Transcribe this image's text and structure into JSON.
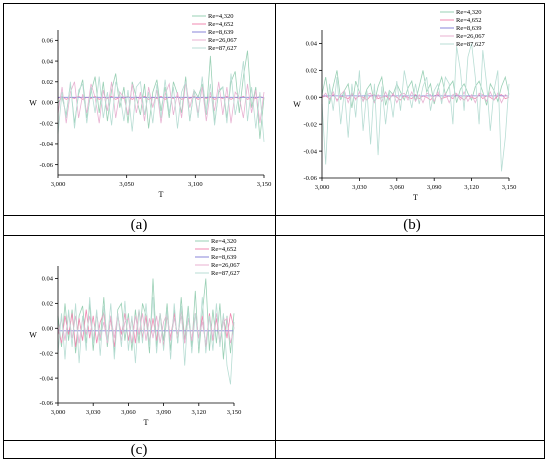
{
  "captions": [
    "(a)",
    "(b)",
    "(c)"
  ],
  "legend_colors": [
    "#9ad0b5",
    "#f08ab2",
    "#8a86d8",
    "#e8b2d2",
    "#b8ddd4"
  ],
  "chart_data": [
    {
      "id": "a",
      "type": "line",
      "xlabel": "T",
      "ylabel": "W",
      "xlim": [
        3000,
        3150
      ],
      "ylim": [
        -0.07,
        0.07
      ],
      "xticks": [
        "3,000",
        "3,050",
        "3,100",
        "3,150"
      ],
      "xtick_values": [
        3000,
        3050,
        3100,
        3150
      ],
      "yticks": [
        "-0.06",
        "-0.04",
        "-0.02",
        "0.00",
        "0.02",
        "0.04",
        "0.06"
      ],
      "ytick_values": [
        -0.06,
        -0.04,
        -0.02,
        0.0,
        0.02,
        0.04,
        0.06
      ],
      "series": [
        {
          "name": "Re=4,320",
          "values": [
            0.0,
            0.005,
            -0.012,
            0.018,
            -0.02,
            0.008,
            0.022,
            -0.015,
            0.01,
            0.025,
            -0.01,
            0.02,
            -0.018,
            0.012,
            0.028,
            -0.005,
            0.015,
            -0.02,
            0.02,
            0.005,
            -0.012,
            0.018,
            -0.025,
            0.01,
            0.022,
            -0.008,
            0.015,
            -0.015,
            0.02,
            0.008,
            -0.01,
            0.025,
            -0.018,
            0.012,
            0.005,
            0.018,
            -0.012,
            0.045,
            -0.02,
            0.01,
            0.015,
            -0.015,
            0.02,
            0.03,
            -0.01,
            0.025,
            0.05,
            -0.005,
            0.015,
            -0.035,
            0.005
          ]
        },
        {
          "name": "Re=4,652",
          "values": [
            0.004,
            0.006,
            0.003,
            0.005,
            0.004,
            0.006,
            0.003,
            0.005,
            0.004,
            0.006,
            0.003,
            0.005,
            0.004,
            0.006,
            0.003,
            0.005,
            0.004,
            0.006,
            0.003,
            0.005,
            0.004,
            0.006,
            0.003,
            0.005,
            0.004,
            0.006,
            0.003,
            0.005,
            0.004,
            0.006,
            0.003,
            0.005,
            0.004,
            0.006,
            0.003,
            0.005,
            0.004,
            0.006,
            0.003,
            0.005,
            0.004,
            0.006,
            0.003,
            0.005,
            0.004,
            0.006,
            0.003,
            0.005,
            0.004,
            0.006,
            0.004
          ]
        },
        {
          "name": "Re=8,639",
          "values": [
            0.005,
            0.005,
            0.005,
            0.005,
            0.005,
            0.005,
            0.005,
            0.005,
            0.005,
            0.005,
            0.005,
            0.005,
            0.005,
            0.005,
            0.005,
            0.005,
            0.005,
            0.005,
            0.005,
            0.005,
            0.005,
            0.005,
            0.005,
            0.005,
            0.005,
            0.005,
            0.005,
            0.005,
            0.005,
            0.005,
            0.005,
            0.005,
            0.005,
            0.005,
            0.005,
            0.005,
            0.005,
            0.005,
            0.005,
            0.005,
            0.005,
            0.005,
            0.005,
            0.005,
            0.005,
            0.005,
            0.005,
            0.005,
            0.005,
            0.005,
            0.005
          ]
        },
        {
          "name": "Re=26,067",
          "values": [
            -0.01,
            0.015,
            -0.02,
            0.01,
            0.02,
            -0.015,
            0.008,
            -0.01,
            0.018,
            0.005,
            -0.02,
            0.012,
            -0.008,
            0.02,
            -0.015,
            0.01,
            0.005,
            -0.012,
            0.018,
            -0.01,
            0.01,
            -0.018,
            0.015,
            -0.005,
            0.012,
            -0.02,
            0.008,
            0.018,
            -0.012,
            0.01,
            -0.015,
            0.02,
            -0.005,
            0.012,
            -0.01,
            0.015,
            -0.018,
            0.01,
            -0.008,
            0.02,
            -0.012,
            0.015,
            -0.02,
            0.01,
            0.005,
            -0.015,
            0.018,
            -0.01,
            0.012,
            -0.02,
            0.01
          ]
        },
        {
          "name": "Re=87,627",
          "values": [
            -0.03,
            0.01,
            -0.015,
            0.02,
            -0.025,
            0.012,
            0.018,
            -0.02,
            0.015,
            -0.01,
            0.025,
            -0.015,
            0.01,
            -0.022,
            0.02,
            0.008,
            -0.018,
            0.012,
            -0.028,
            0.015,
            0.02,
            -0.012,
            0.01,
            -0.02,
            0.018,
            -0.015,
            0.022,
            -0.01,
            0.015,
            -0.025,
            0.01,
            0.02,
            -0.018,
            0.012,
            -0.015,
            0.025,
            -0.01,
            0.018,
            -0.022,
            0.012,
            0.015,
            -0.02,
            0.028,
            -0.012,
            0.01,
            0.04,
            -0.018,
            0.015,
            -0.025,
            0.01,
            -0.038
          ]
        }
      ]
    },
    {
      "id": "b",
      "type": "line",
      "xlabel": "T",
      "ylabel": "W",
      "xlim": [
        3000,
        3150
      ],
      "ylim": [
        -0.06,
        0.05
      ],
      "xticks": [
        "3,000",
        "3,030",
        "3,060",
        "3,090",
        "3,120",
        "3,150"
      ],
      "xtick_values": [
        3000,
        3030,
        3060,
        3090,
        3120,
        3150
      ],
      "yticks": [
        "-0.06",
        "-0.04",
        "-0.02",
        "0.00",
        "0.02",
        "0.04"
      ],
      "ytick_values": [
        -0.06,
        -0.04,
        -0.02,
        0.0,
        0.02,
        0.04
      ],
      "series": [
        {
          "name": "Re=4,320",
          "values": [
            0.002,
            0.015,
            -0.005,
            0.008,
            0.02,
            -0.002,
            0.005,
            0.01,
            -0.008,
            0.012,
            0.004,
            -0.003,
            0.006,
            0.01,
            -0.004,
            0.008,
            0.015,
            -0.006,
            0.005,
            0.002,
            0.01,
            0.004,
            -0.002,
            0.007,
            0.012,
            -0.003,
            0.008,
            0.02,
            0.004,
            0.01,
            -0.005,
            0.006,
            0.015,
            0.002,
            0.008,
            0.012,
            -0.004,
            0.006,
            0.01,
            0.003,
            -0.002,
            0.008,
            0.012,
            0.004,
            -0.006,
            0.01,
            0.005,
            -0.003,
            0.008,
            0.015,
            0.002
          ]
        },
        {
          "name": "Re=4,652",
          "values": [
            0.0,
            0.001,
            -0.001,
            0.002,
            -0.002,
            0.001,
            0.0,
            -0.001,
            0.002,
            -0.001,
            0.001,
            0.0,
            -0.002,
            0.001,
            0.002,
            -0.001,
            0.0,
            0.001,
            -0.001,
            0.002,
            0.0,
            -0.002,
            0.001,
            0.0,
            -0.001,
            0.002,
            -0.001,
            0.001,
            0.0,
            -0.002,
            0.001,
            0.002,
            -0.001,
            0.0,
            0.001,
            -0.001,
            0.002,
            0.0,
            -0.002,
            0.001,
            0.0,
            -0.001,
            0.002,
            -0.001,
            0.001,
            0.0,
            -0.002,
            0.001,
            0.002,
            -0.001,
            0.0
          ]
        },
        {
          "name": "Re=8,639",
          "values": [
            0.001,
            0.001,
            0.001,
            0.001,
            0.001,
            0.001,
            0.001,
            0.001,
            0.001,
            0.001,
            0.001,
            0.001,
            0.001,
            0.001,
            0.001,
            0.001,
            0.001,
            0.001,
            0.001,
            0.001,
            0.001,
            0.001,
            0.001,
            0.001,
            0.001,
            0.001,
            0.001,
            0.001,
            0.001,
            0.001,
            0.001,
            0.001,
            0.001,
            0.001,
            0.001,
            0.001,
            0.001,
            0.001,
            0.001,
            0.001,
            0.001,
            0.001,
            0.001,
            0.001,
            0.001,
            0.001,
            0.001,
            0.001,
            0.001,
            0.001,
            0.001
          ]
        },
        {
          "name": "Re=26,067",
          "values": [
            0.0,
            0.003,
            -0.002,
            0.004,
            -0.003,
            0.002,
            0.005,
            -0.004,
            0.003,
            -0.002,
            0.004,
            -0.003,
            0.002,
            0.003,
            -0.004,
            0.002,
            -0.003,
            0.004,
            -0.002,
            0.003,
            -0.004,
            0.002,
            0.003,
            -0.002,
            0.004,
            -0.003,
            0.002,
            -0.004,
            0.003,
            0.002,
            -0.003,
            0.004,
            -0.002,
            0.003,
            -0.004,
            0.002,
            0.003,
            -0.002,
            0.004,
            -0.003,
            0.002,
            -0.004,
            0.003,
            0.002,
            -0.003,
            0.004,
            -0.002,
            0.003,
            -0.004,
            0.002,
            0.0
          ]
        },
        {
          "name": "Re=87,627",
          "values": [
            -0.005,
            -0.05,
            0.01,
            -0.01,
            0.015,
            -0.02,
            0.005,
            -0.03,
            0.01,
            -0.015,
            0.02,
            -0.025,
            0.005,
            -0.035,
            0.01,
            -0.043,
            0.008,
            -0.02,
            0.005,
            -0.015,
            0.012,
            -0.01,
            0.02,
            0.005,
            -0.008,
            0.01,
            -0.005,
            0.008,
            0.015,
            -0.01,
            0.005,
            0.01,
            -0.005,
            0.015,
            0.01,
            -0.02,
            0.038,
            0.02,
            -0.01,
            0.03,
            0.04,
            0.015,
            -0.02,
            0.035,
            0.01,
            -0.025,
            0.005,
            0.02,
            -0.055,
            -0.03,
            0.01
          ]
        }
      ]
    },
    {
      "id": "c",
      "type": "line",
      "xlabel": "T",
      "ylabel": "W",
      "xlim": [
        3000,
        3150
      ],
      "ylim": [
        -0.06,
        0.05
      ],
      "xticks": [
        "3,000",
        "3,030",
        "3,060",
        "3,090",
        "3,120",
        "3,150"
      ],
      "xtick_values": [
        3000,
        3030,
        3060,
        3090,
        3120,
        3150
      ],
      "yticks": [
        "-0.06",
        "-0.04",
        "-0.02",
        "0.00",
        "0.02",
        "0.04"
      ],
      "ytick_values": [
        -0.06,
        -0.04,
        -0.02,
        0.0,
        0.02,
        0.04
      ],
      "series": [
        {
          "name": "Re=4,320",
          "values": [
            0.01,
            -0.015,
            0.02,
            -0.01,
            0.015,
            -0.02,
            0.01,
            0.018,
            -0.012,
            0.02,
            -0.018,
            0.012,
            -0.01,
            0.025,
            -0.015,
            0.01,
            -0.02,
            0.015,
            0.02,
            -0.01,
            0.012,
            -0.018,
            0.015,
            -0.012,
            0.02,
            0.01,
            -0.02,
            0.04,
            -0.015,
            0.012,
            -0.01,
            0.02,
            -0.018,
            0.015,
            -0.012,
            0.025,
            -0.01,
            0.018,
            -0.015,
            0.03,
            -0.02,
            0.012,
            0.04,
            -0.018,
            0.015,
            -0.012,
            0.02,
            -0.025,
            0.01,
            -0.02,
            0.012
          ]
        },
        {
          "name": "Re=4,652",
          "values": [
            0.0,
            -0.012,
            0.01,
            -0.005,
            0.012,
            -0.015,
            0.008,
            -0.01,
            0.015,
            -0.008,
            0.01,
            -0.012,
            0.005,
            0.012,
            -0.01,
            0.008,
            -0.015,
            0.01,
            -0.005,
            0.012,
            -0.01,
            0.008,
            -0.012,
            0.015,
            -0.008,
            0.01,
            -0.012,
            0.008,
            -0.01,
            0.012,
            -0.015,
            0.01,
            -0.008,
            0.012,
            -0.01,
            0.015,
            -0.012,
            0.008,
            -0.01,
            0.012,
            -0.008,
            0.01,
            -0.015,
            0.012,
            -0.01,
            0.008,
            -0.012,
            0.01,
            -0.008,
            0.012,
            0.0
          ]
        },
        {
          "name": "Re=8,639",
          "values": [
            -0.002,
            -0.002,
            -0.002,
            -0.002,
            -0.002,
            -0.002,
            -0.002,
            -0.002,
            -0.002,
            -0.002,
            -0.002,
            -0.002,
            -0.002,
            -0.002,
            -0.002,
            -0.002,
            -0.002,
            -0.002,
            -0.002,
            -0.002,
            -0.002,
            -0.002,
            -0.002,
            -0.002,
            -0.002,
            -0.002,
            -0.002,
            -0.002,
            -0.002,
            -0.002,
            -0.002,
            -0.002,
            -0.002,
            -0.002,
            -0.002,
            -0.002,
            -0.002,
            -0.002,
            -0.002,
            -0.002,
            -0.002,
            -0.002,
            -0.002,
            -0.002,
            -0.002,
            -0.002,
            -0.002,
            -0.002,
            -0.002,
            -0.002,
            -0.002
          ]
        },
        {
          "name": "Re=26,067",
          "values": [
            -0.005,
            0.008,
            -0.01,
            0.012,
            -0.008,
            0.01,
            -0.012,
            0.008,
            -0.005,
            0.01,
            -0.01,
            0.012,
            -0.008,
            0.005,
            -0.012,
            0.01,
            -0.008,
            0.012,
            -0.01,
            0.005,
            0.008,
            -0.012,
            0.01,
            -0.005,
            0.012,
            -0.01,
            0.008,
            -0.008,
            0.01,
            -0.012,
            0.005,
            0.012,
            -0.01,
            0.008,
            -0.005,
            0.01,
            -0.012,
            0.008,
            -0.01,
            0.012,
            -0.008,
            0.005,
            -0.012,
            0.01,
            -0.008,
            0.012,
            -0.01,
            0.005,
            0.008,
            -0.012,
            0.0
          ]
        },
        {
          "name": "Re=87,627",
          "values": [
            -0.02,
            0.012,
            -0.025,
            0.015,
            -0.015,
            0.02,
            -0.028,
            0.01,
            -0.018,
            0.025,
            -0.012,
            0.015,
            -0.022,
            0.018,
            -0.01,
            0.02,
            -0.025,
            0.012,
            -0.015,
            0.022,
            -0.018,
            0.01,
            -0.028,
            0.015,
            -0.012,
            0.02,
            -0.015,
            0.025,
            -0.02,
            0.012,
            -0.018,
            0.015,
            -0.025,
            0.02,
            -0.012,
            0.018,
            -0.03,
            0.015,
            -0.02,
            0.012,
            -0.015,
            0.025,
            -0.02,
            0.01,
            -0.018,
            0.02,
            -0.015,
            0.012,
            -0.03,
            -0.045,
            0.005
          ]
        }
      ]
    }
  ]
}
